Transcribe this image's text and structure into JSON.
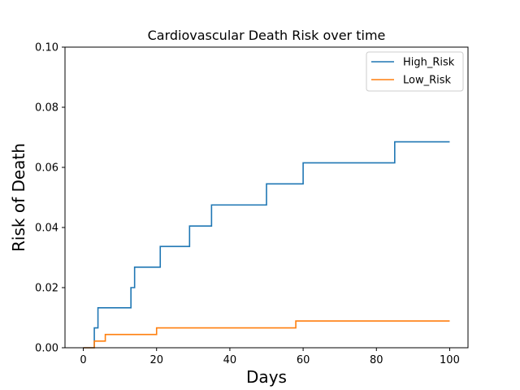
{
  "chart_data": {
    "type": "line",
    "step": true,
    "title": "Cardiovascular Death Risk over time",
    "xlabel": "Days",
    "ylabel": "Risk of Death",
    "xlim": [
      -5,
      105
    ],
    "ylim": [
      0,
      0.1
    ],
    "xticks": [
      0,
      20,
      40,
      60,
      80,
      100
    ],
    "xtick_labels": [
      "0",
      "20",
      "40",
      "60",
      "80",
      "100"
    ],
    "yticks": [
      0,
      0.02,
      0.04,
      0.06,
      0.08,
      0.1
    ],
    "ytick_labels": [
      "0.00",
      "0.02",
      "0.04",
      "0.06",
      "0.08",
      "0.10"
    ],
    "grid": false,
    "legend_position": "top-right",
    "series": [
      {
        "name": "High_Risk",
        "color": "#1f77b4",
        "x": [
          0,
          3,
          4,
          13,
          14,
          21,
          29,
          35,
          50,
          60,
          85,
          100
        ],
        "y": [
          0,
          0.0066,
          0.0133,
          0.02,
          0.0268,
          0.0337,
          0.0405,
          0.0475,
          0.0545,
          0.0615,
          0.0685,
          0.0685
        ]
      },
      {
        "name": "Low_Risk",
        "color": "#ff7f0e",
        "x": [
          0,
          3,
          6,
          20,
          58,
          100
        ],
        "y": [
          0,
          0.0022,
          0.0044,
          0.0066,
          0.0089,
          0.0089
        ]
      }
    ]
  }
}
